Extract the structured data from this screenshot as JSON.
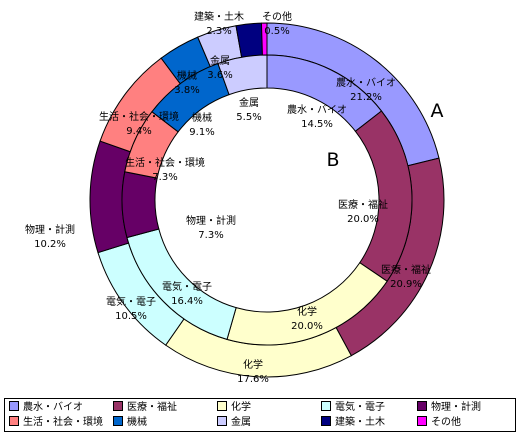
{
  "chart_data": {
    "type": "donut",
    "rings": [
      {
        "marker": "A",
        "values": [
          21.2,
          20.9,
          17.6,
          10.5,
          10.2,
          9.4,
          3.8,
          3.6,
          2.3,
          0.5
        ],
        "series": [
          "農水・バイオ",
          "医療・福祉",
          "化学",
          "電気・電子",
          "物理・計測",
          "生活・社会・環境",
          "機械",
          "金属",
          "建築・土木",
          "その他"
        ],
        "labels": [
          "21.2%",
          "20.9%",
          "17.6%",
          "10.5%",
          "10.2%",
          "9.4%",
          "3.8%",
          "3.6%",
          "2.3%",
          "0.5%"
        ]
      },
      {
        "marker": "B",
        "values": [
          14.5,
          20.0,
          20.0,
          16.4,
          7.3,
          7.3,
          9.1,
          5.5
        ],
        "series": [
          "農水・バイオ",
          "医療・福祉",
          "化学",
          "電気・電子",
          "物理・計測",
          "生活・社会・環境",
          "機械",
          "金属"
        ],
        "labels": [
          "14.5%",
          "20.0%",
          "20.0%",
          "16.4%",
          "7.3%",
          "7.3%",
          "9.1%",
          "5.5%"
        ]
      }
    ],
    "legend": [
      {
        "name": "農水・バイオ",
        "color": "#9999ff"
      },
      {
        "name": "医療・福祉",
        "color": "#993366"
      },
      {
        "name": "化学",
        "color": "#ffffcc"
      },
      {
        "name": "電気・電子",
        "color": "#ccffff"
      },
      {
        "name": "物理・計測",
        "color": "#660066"
      },
      {
        "name": "生活・社会・環境",
        "color": "#ff8080"
      },
      {
        "name": "機械",
        "color": "#0066cc"
      },
      {
        "name": "金属",
        "color": "#ccccff"
      },
      {
        "name": "建築・土木",
        "color": "#000080"
      },
      {
        "name": "その他",
        "color": "#ff00ff"
      }
    ],
    "legend_position": "bottom"
  }
}
